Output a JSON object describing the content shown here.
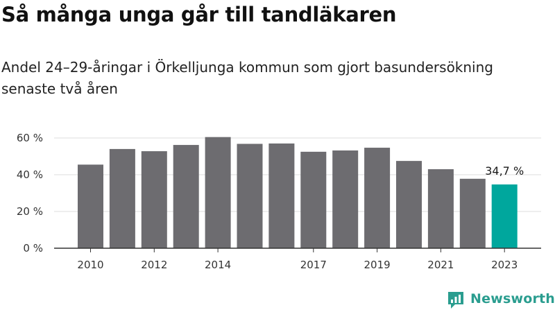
{
  "title": "Så många unga går till tandläkaren",
  "subtitle": "Andel 24–29-åringar i Örkelljunga kommun som gjort basundersökning senaste två åren",
  "brand": {
    "name": "Newsworthy",
    "color": "#2a9d8f"
  },
  "chart_data": {
    "type": "bar",
    "categories": [
      "2010",
      "2011",
      "2012",
      "2013",
      "2014",
      "2015",
      "2016",
      "2017",
      "2018",
      "2019",
      "2020",
      "2021",
      "2022",
      "2023"
    ],
    "x_tick_labels": [
      "2010",
      "",
      "2012",
      "",
      "2014",
      "",
      "",
      "2017",
      "",
      "2019",
      "",
      "2021",
      "",
      "2023"
    ],
    "series": [
      {
        "values": [
          45.5,
          54.0,
          52.8,
          56.2,
          60.5,
          56.8,
          57.0,
          52.5,
          53.2,
          54.7,
          47.5,
          43.0,
          37.8,
          34.7
        ]
      }
    ],
    "ylim": [
      0,
      60
    ],
    "y_ticks": [
      0,
      20,
      40,
      60
    ],
    "y_tick_labels": [
      "0 %",
      "20 %",
      "40 %",
      "60 %"
    ],
    "grid": true,
    "highlight_index": 13,
    "highlight_label": "34,7 %",
    "colors": {
      "bar": "#6d6c70",
      "highlight": "#00a79d",
      "grid": "#dddddd",
      "axis": "#333333"
    }
  }
}
